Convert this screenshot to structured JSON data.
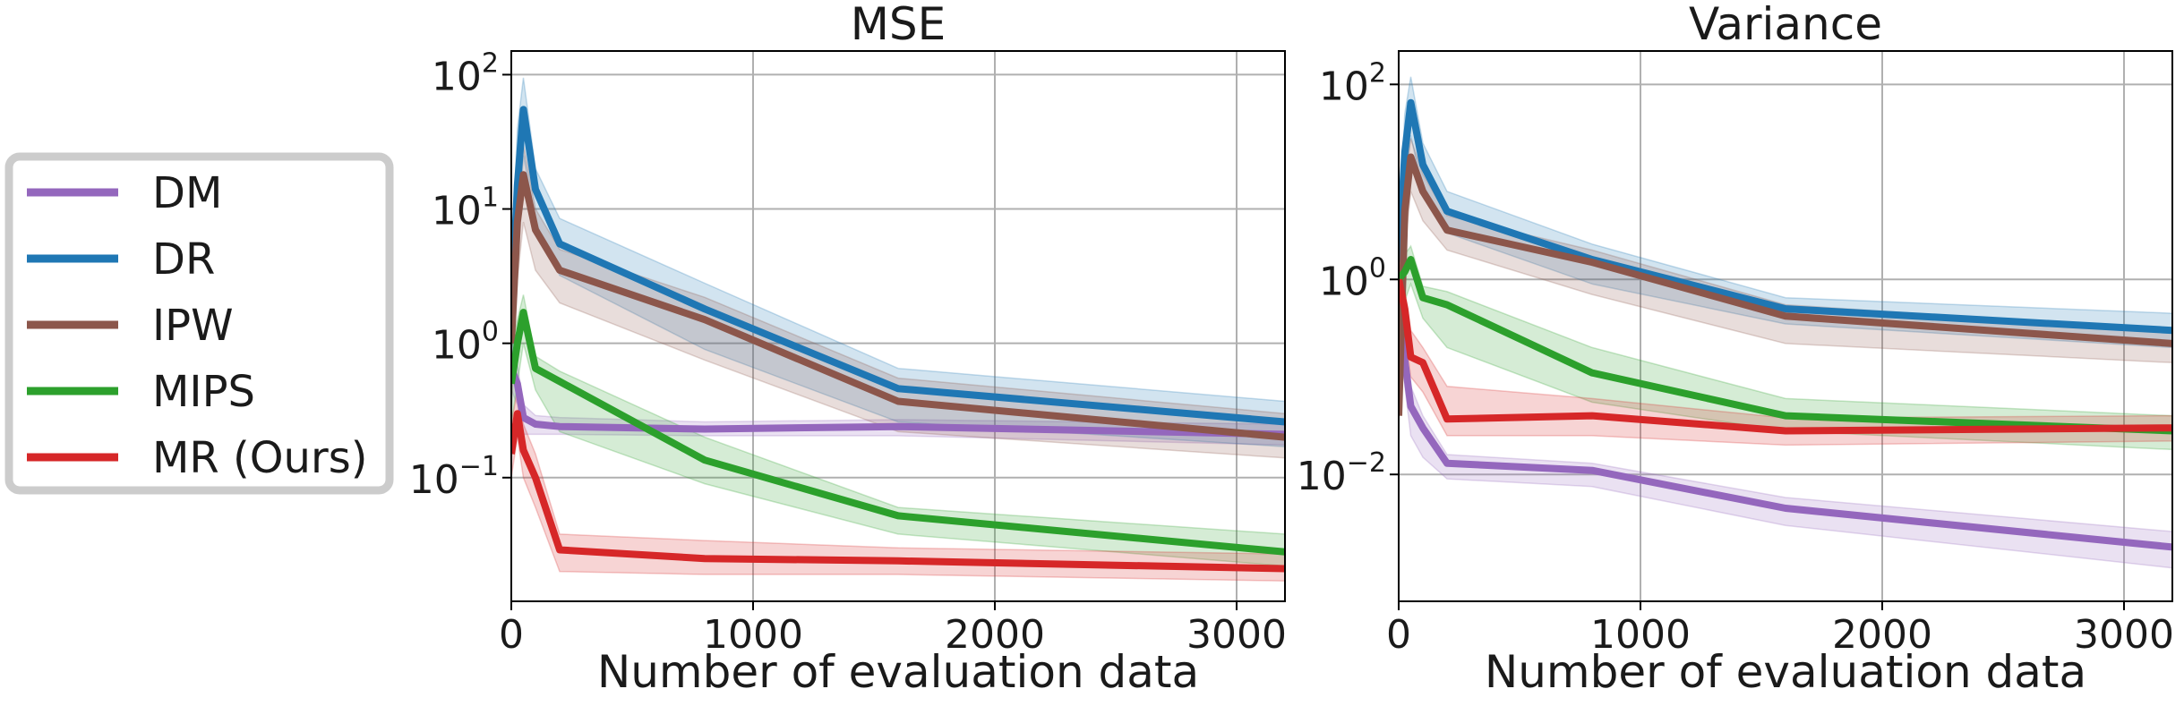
{
  "legend": {
    "placement": "left",
    "entries": [
      {
        "label": "DM",
        "color": "#9467bd"
      },
      {
        "label": "DR",
        "color": "#1f77b4"
      },
      {
        "label": "IPW",
        "color": "#8c564b"
      },
      {
        "label": "MIPS",
        "color": "#2ca02c"
      },
      {
        "label": "MR (Ours)",
        "color": "#d62728"
      }
    ]
  },
  "chart_data": [
    {
      "type": "line",
      "title": "MSE",
      "xlabel": "Number of evaluation data",
      "ylabel": "",
      "yscale": "log",
      "xlim": [
        0,
        3200
      ],
      "ylim": [
        0.012,
        150
      ],
      "xticks": [
        0,
        1000,
        2000,
        3000
      ],
      "xtick_labels": [
        "0",
        "1000",
        "2000",
        "3000"
      ],
      "yticks": [
        0.1,
        1,
        10,
        100
      ],
      "ytick_labels": [
        {
          "base": "10",
          "exp": "−1"
        },
        {
          "base": "10",
          "exp": "0"
        },
        {
          "base": "10",
          "exp": "1"
        },
        {
          "base": "10",
          "exp": "2"
        }
      ],
      "grid": true,
      "x": [
        0,
        25,
        50,
        100,
        200,
        800,
        1600,
        3200
      ],
      "series": [
        {
          "name": "DM",
          "color": "#9467bd",
          "values": [
            0.65,
            0.5,
            0.28,
            0.25,
            0.24,
            0.23,
            0.24,
            0.21
          ],
          "lower": [
            0.45,
            0.35,
            0.21,
            0.21,
            0.21,
            0.205,
            0.205,
            0.175
          ],
          "upper": [
            0.9,
            0.7,
            0.35,
            0.29,
            0.28,
            0.26,
            0.27,
            0.25
          ]
        },
        {
          "name": "DR",
          "color": "#1f77b4",
          "values": [
            1.5,
            15,
            55,
            14,
            5.5,
            1.8,
            0.46,
            0.26
          ],
          "lower": [
            0.5,
            5,
            25,
            8,
            3.2,
            0.9,
            0.26,
            0.17
          ],
          "upper": [
            3.5,
            40,
            95,
            20,
            8.5,
            2.8,
            0.65,
            0.37
          ]
        },
        {
          "name": "IPW",
          "color": "#8c564b",
          "values": [
            1.0,
            8,
            18,
            7,
            3.5,
            1.5,
            0.37,
            0.2
          ],
          "lower": [
            0.3,
            3,
            8,
            3.5,
            2,
            0.75,
            0.22,
            0.14
          ],
          "upper": [
            2.5,
            20,
            30,
            10,
            5,
            2.2,
            0.55,
            0.3
          ]
        },
        {
          "name": "MIPS",
          "color": "#2ca02c",
          "values": [
            0.5,
            1.0,
            1.7,
            0.65,
            0.52,
            0.135,
            0.052,
            0.028
          ],
          "lower": [
            0.25,
            0.5,
            1.0,
            0.45,
            0.22,
            0.09,
            0.038,
            0.022
          ],
          "upper": [
            0.9,
            1.5,
            2.3,
            0.8,
            0.62,
            0.2,
            0.06,
            0.038
          ]
        },
        {
          "name": "MR (Ours)",
          "color": "#d62728",
          "values": [
            0.15,
            0.3,
            0.16,
            0.1,
            0.029,
            0.025,
            0.024,
            0.021
          ],
          "lower": [
            0.1,
            0.2,
            0.1,
            0.06,
            0.02,
            0.019,
            0.019,
            0.017
          ],
          "upper": [
            0.25,
            0.45,
            0.25,
            0.15,
            0.038,
            0.034,
            0.03,
            0.027
          ]
        }
      ]
    },
    {
      "type": "line",
      "title": "Variance",
      "xlabel": "Number of evaluation data",
      "ylabel": "",
      "yscale": "log",
      "xlim": [
        0,
        3200
      ],
      "ylim": [
        0.0005,
        220
      ],
      "xticks": [
        0,
        1000,
        2000,
        3000
      ],
      "xtick_labels": [
        "0",
        "1000",
        "2000",
        "3000"
      ],
      "yticks": [
        0.01,
        1,
        100
      ],
      "ytick_labels": [
        {
          "base": "10",
          "exp": "−2"
        },
        {
          "base": "10",
          "exp": "0"
        },
        {
          "base": "10",
          "exp": "2"
        }
      ],
      "grid": true,
      "x": [
        0,
        25,
        50,
        100,
        200,
        800,
        1600,
        3200
      ],
      "series": [
        {
          "name": "DM",
          "color": "#9467bd",
          "values": [
            0.8,
            0.15,
            0.05,
            0.03,
            0.013,
            0.011,
            0.0045,
            0.0018
          ],
          "lower": [
            0.4,
            0.08,
            0.025,
            0.015,
            0.009,
            0.0075,
            0.003,
            0.0011
          ],
          "upper": [
            1.2,
            0.25,
            0.08,
            0.04,
            0.016,
            0.013,
            0.0058,
            0.0026
          ]
        },
        {
          "name": "DR",
          "color": "#1f77b4",
          "values": [
            1.5,
            20,
            65,
            15,
            5,
            1.6,
            0.5,
            0.3
          ],
          "lower": [
            0.6,
            8,
            30,
            8,
            3,
            0.9,
            0.35,
            0.2
          ],
          "upper": [
            3,
            50,
            120,
            25,
            8,
            2.3,
            0.65,
            0.45
          ]
        },
        {
          "name": "IPW",
          "color": "#8c564b",
          "values": [
            0.04,
            5,
            18,
            8,
            3.2,
            1.5,
            0.42,
            0.22
          ],
          "lower": [
            0.03,
            2,
            8,
            4,
            2,
            0.7,
            0.22,
            0.14
          ],
          "upper": [
            0.06,
            10,
            28,
            12,
            4.5,
            2,
            0.55,
            0.3
          ]
        },
        {
          "name": "MIPS",
          "color": "#2ca02c",
          "values": [
            1.0,
            1.2,
            1.6,
            0.65,
            0.55,
            0.11,
            0.04,
            0.028
          ],
          "lower": [
            0.5,
            0.6,
            0.9,
            0.4,
            0.2,
            0.055,
            0.028,
            0.018
          ],
          "upper": [
            1.5,
            1.8,
            2.2,
            0.85,
            0.75,
            0.2,
            0.06,
            0.04
          ]
        },
        {
          "name": "MR (Ours)",
          "color": "#d62728",
          "values": [
            1.0,
            0.5,
            0.16,
            0.14,
            0.037,
            0.04,
            0.028,
            0.03
          ],
          "lower": [
            0.7,
            0.3,
            0.1,
            0.07,
            0.025,
            0.025,
            0.02,
            0.022
          ],
          "upper": [
            1.3,
            0.8,
            0.3,
            0.2,
            0.08,
            0.06,
            0.038,
            0.04
          ]
        }
      ]
    }
  ]
}
